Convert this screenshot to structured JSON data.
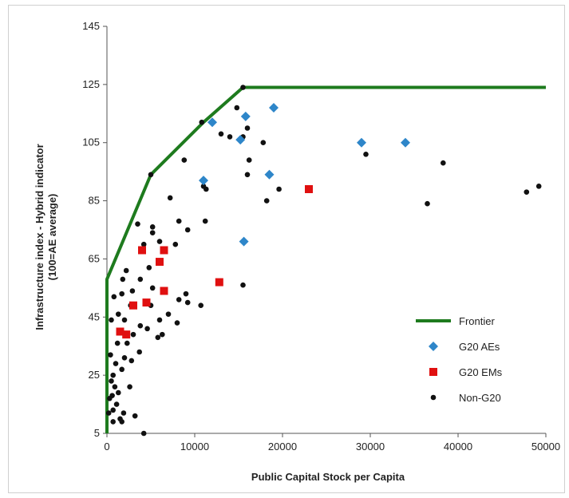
{
  "chart_data": {
    "type": "scatter",
    "title": "",
    "xlabel": "Public Capital Stock per Capita",
    "ylabel": "Infrastructure index - Hybrid indicator",
    "ylabel2": "(100=AE average)",
    "xlim": [
      0,
      50000
    ],
    "ylim": [
      5,
      145
    ],
    "x_ticks": [
      0,
      10000,
      20000,
      30000,
      40000,
      50000
    ],
    "y_ticks": [
      5,
      25,
      45,
      65,
      85,
      105,
      125,
      145
    ],
    "grid": false,
    "legend_position": "bottom-right",
    "colors": {
      "frontier": "#1e7b1e",
      "g20_aes": "#2e86c9",
      "g20_ems": "#e01010",
      "non_g20": "#111111"
    },
    "series": [
      {
        "name": "Frontier",
        "kind": "line",
        "points": [
          [
            0,
            5
          ],
          [
            0,
            58
          ],
          [
            5000,
            94
          ],
          [
            11000,
            112
          ],
          [
            15500,
            124
          ],
          [
            50000,
            124
          ]
        ]
      },
      {
        "name": "G20 AEs",
        "kind": "diamond",
        "points": [
          [
            12000,
            112
          ],
          [
            15800,
            114
          ],
          [
            19000,
            117
          ],
          [
            15200,
            106
          ],
          [
            11000,
            92
          ],
          [
            18500,
            94
          ],
          [
            29000,
            105
          ],
          [
            34000,
            105
          ],
          [
            15600,
            71
          ]
        ]
      },
      {
        "name": "G20 EMs",
        "kind": "square",
        "points": [
          [
            4000,
            68
          ],
          [
            6500,
            68
          ],
          [
            6000,
            64
          ],
          [
            6500,
            54
          ],
          [
            12800,
            57
          ],
          [
            23000,
            89
          ],
          [
            3000,
            49
          ],
          [
            4500,
            50
          ],
          [
            1500,
            40
          ],
          [
            2200,
            39
          ]
        ]
      },
      {
        "name": "Non-G20",
        "kind": "dot",
        "points": [
          [
            15500,
            124
          ],
          [
            14800,
            117
          ],
          [
            16000,
            110
          ],
          [
            15500,
            107
          ],
          [
            14000,
            107
          ],
          [
            13000,
            108
          ],
          [
            17800,
            105
          ],
          [
            16200,
            99
          ],
          [
            16000,
            94
          ],
          [
            19600,
            89
          ],
          [
            18200,
            85
          ],
          [
            10800,
            112
          ],
          [
            11300,
            89
          ],
          [
            11000,
            90
          ],
          [
            7200,
            86
          ],
          [
            5000,
            94
          ],
          [
            8800,
            99
          ],
          [
            29500,
            101
          ],
          [
            38300,
            98
          ],
          [
            36500,
            84
          ],
          [
            47800,
            88
          ],
          [
            49200,
            90
          ],
          [
            15500,
            56
          ],
          [
            10700,
            49
          ],
          [
            11200,
            78
          ],
          [
            8200,
            78
          ],
          [
            9200,
            75
          ],
          [
            3500,
            77
          ],
          [
            5200,
            76
          ],
          [
            5200,
            74
          ],
          [
            6000,
            71
          ],
          [
            7800,
            70
          ],
          [
            4200,
            70
          ],
          [
            4800,
            62
          ],
          [
            2200,
            61
          ],
          [
            1800,
            58
          ],
          [
            3800,
            58
          ],
          [
            5200,
            55
          ],
          [
            9000,
            53
          ],
          [
            8200,
            51
          ],
          [
            9200,
            50
          ],
          [
            7000,
            46
          ],
          [
            5000,
            49
          ],
          [
            2700,
            49
          ],
          [
            800,
            52
          ],
          [
            1700,
            53
          ],
          [
            6000,
            44
          ],
          [
            8000,
            43
          ],
          [
            3800,
            42
          ],
          [
            4600,
            41
          ],
          [
            2000,
            44
          ],
          [
            1300,
            46
          ],
          [
            500,
            44
          ],
          [
            6300,
            39
          ],
          [
            5800,
            38
          ],
          [
            3000,
            39
          ],
          [
            2300,
            36
          ],
          [
            3700,
            33
          ],
          [
            1200,
            36
          ],
          [
            2800,
            30
          ],
          [
            1000,
            29
          ],
          [
            1700,
            27
          ],
          [
            700,
            25
          ],
          [
            500,
            23
          ],
          [
            900,
            21
          ],
          [
            2600,
            21
          ],
          [
            1300,
            19
          ],
          [
            600,
            18
          ],
          [
            300,
            17
          ],
          [
            1100,
            15
          ],
          [
            700,
            13
          ],
          [
            200,
            12
          ],
          [
            1900,
            12
          ],
          [
            1500,
            10
          ],
          [
            700,
            9
          ],
          [
            1700,
            9
          ],
          [
            3200,
            11
          ],
          [
            4200,
            5
          ],
          [
            2000,
            31
          ],
          [
            400,
            32
          ],
          [
            2900,
            54
          ]
        ]
      }
    ]
  }
}
